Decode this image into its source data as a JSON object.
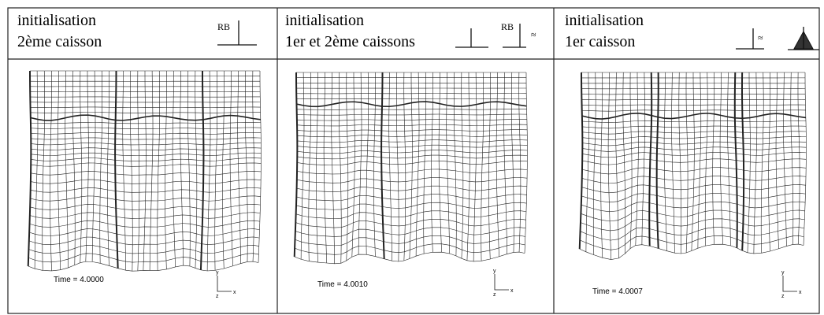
{
  "panels": [
    {
      "title": [
        "initialisation",
        "2ème caisson"
      ],
      "symbols": [
        "RB"
      ],
      "time": "Time = 4.0000",
      "axes": [
        "y",
        "z",
        "x"
      ]
    },
    {
      "title": [
        "initialisation",
        "1er et 2ème caissons"
      ],
      "symbols": [
        "RB",
        "≈"
      ],
      "time": "Time = 4.0010",
      "axes": [
        "y",
        "z",
        "x"
      ]
    },
    {
      "title": [
        "initialisation",
        "1er caisson"
      ],
      "symbols": [
        "≈"
      ],
      "time": "Time = 4.0007",
      "axes": [
        "y",
        "z",
        "x"
      ]
    }
  ]
}
